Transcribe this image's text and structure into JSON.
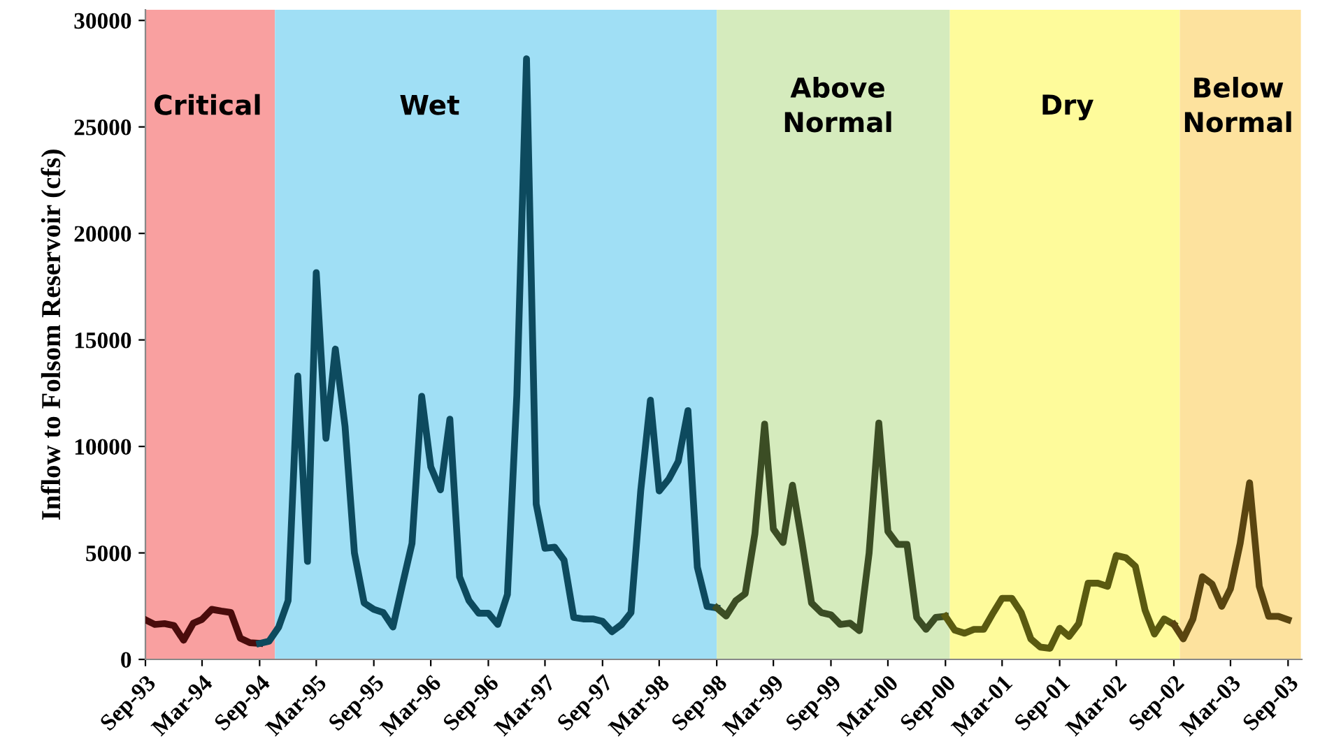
{
  "chart_data": {
    "type": "line",
    "ylabel": "Inflow to Folsom Reservoir (cfs)",
    "ylim": [
      0,
      30500
    ],
    "yticks": [
      0,
      5000,
      10000,
      15000,
      20000,
      25000,
      30000
    ],
    "xlim": [
      "1993-09",
      "2003-10-15"
    ],
    "xticks": [
      {
        "value": "1993-09",
        "label": "Sep-93"
      },
      {
        "value": "1994-03",
        "label": "Mar-94"
      },
      {
        "value": "1994-09",
        "label": "Sep-94"
      },
      {
        "value": "1995-03",
        "label": "Mar-95"
      },
      {
        "value": "1995-09",
        "label": "Sep-95"
      },
      {
        "value": "1996-03",
        "label": "Mar-96"
      },
      {
        "value": "1996-09",
        "label": "Sep-96"
      },
      {
        "value": "1997-03",
        "label": "Mar-97"
      },
      {
        "value": "1997-09",
        "label": "Sep-97"
      },
      {
        "value": "1998-03",
        "label": "Mar-98"
      },
      {
        "value": "1998-09",
        "label": "Sep-98"
      },
      {
        "value": "1999-03",
        "label": "Mar-99"
      },
      {
        "value": "1999-09",
        "label": "Sep-99"
      },
      {
        "value": "2000-03",
        "label": "Mar-00"
      },
      {
        "value": "2000-09",
        "label": "Sep-00"
      },
      {
        "value": "2001-03",
        "label": "Mar-01"
      },
      {
        "value": "2001-09",
        "label": "Sep-01"
      },
      {
        "value": "2002-03",
        "label": "Mar-02"
      },
      {
        "value": "2002-09",
        "label": "Sep-02"
      },
      {
        "value": "2003-03",
        "label": "Mar-03"
      },
      {
        "value": "2003-09",
        "label": "Sep-03"
      }
    ],
    "grid": false,
    "legend": false,
    "marker": "none",
    "line_style": "solid",
    "bands": [
      {
        "axis": "x",
        "from": "1993-09",
        "to": "1994-10-20",
        "label": "Critical",
        "color": "#f9a0a0"
      },
      {
        "axis": "x",
        "from": "1994-10-20",
        "to": "1998-09",
        "label": "Wet",
        "color": "#a0dff5"
      },
      {
        "axis": "x",
        "from": "1998-09",
        "to": "2000-09-15",
        "label": "Above\nNormal",
        "color": "#d5ebbd"
      },
      {
        "axis": "x",
        "from": "2000-09-15",
        "to": "2002-09-20",
        "label": "Dry",
        "color": "#fefb9b"
      },
      {
        "axis": "x",
        "from": "2002-09-20",
        "to": "2003-10-12",
        "label": "Below\nNormal",
        "color": "#fde29e"
      }
    ],
    "series": [
      {
        "color": "#4a0c0c",
        "x": [
          "1993-09",
          "1993-10",
          "1993-11",
          "1993-12",
          "1994-01",
          "1994-02",
          "1994-03",
          "1994-04",
          "1994-05",
          "1994-06",
          "1994-07",
          "1994-08",
          "1994-09"
        ],
        "values": [
          1860,
          1640,
          1680,
          1590,
          900,
          1700,
          1880,
          2350,
          2270,
          2200,
          1000,
          780,
          750
        ]
      },
      {
        "color": "#0d4a5e",
        "x": [
          "1994-09",
          "1994-10",
          "1994-11",
          "1994-12",
          "1995-01",
          "1995-02",
          "1995-03",
          "1995-04",
          "1995-05",
          "1995-06",
          "1995-07",
          "1995-08",
          "1995-09",
          "1995-10",
          "1995-11",
          "1995-12",
          "1996-01",
          "1996-02",
          "1996-03",
          "1996-04",
          "1996-05",
          "1996-06",
          "1996-07",
          "1996-08",
          "1996-09",
          "1996-10",
          "1996-11",
          "1996-12",
          "1997-01",
          "1997-02",
          "1997-03",
          "1997-04",
          "1997-05",
          "1997-06",
          "1997-07",
          "1997-08",
          "1997-09",
          "1997-10",
          "1997-11",
          "1997-12",
          "1998-01",
          "1998-02",
          "1998-03",
          "1998-04",
          "1998-05",
          "1998-06",
          "1998-07",
          "1998-08",
          "1998-09"
        ],
        "values": [
          750,
          850,
          1520,
          2760,
          13300,
          4600,
          18160,
          10380,
          14570,
          10940,
          5000,
          2650,
          2350,
          2200,
          1520,
          3480,
          5450,
          12350,
          9040,
          7960,
          11280,
          3880,
          2760,
          2170,
          2170,
          1640,
          3050,
          12400,
          28200,
          7290,
          5220,
          5270,
          4660,
          1970,
          1900,
          1900,
          1790,
          1300,
          1640,
          2200,
          7910,
          12170,
          7910,
          8470,
          9300,
          11680,
          4330,
          2490,
          2420
        ]
      },
      {
        "color": "#3b4d24",
        "x": [
          "1998-09",
          "1998-10",
          "1998-11",
          "1998-12",
          "1999-01",
          "1999-02",
          "1999-03",
          "1999-04",
          "1999-05",
          "1999-06",
          "1999-07",
          "1999-08",
          "1999-09",
          "1999-10",
          "1999-11",
          "1999-12",
          "2000-01",
          "2000-02",
          "2000-03",
          "2000-04",
          "2000-05",
          "2000-06",
          "2000-07",
          "2000-08",
          "2000-09"
        ],
        "values": [
          2420,
          2040,
          2760,
          3090,
          5900,
          11050,
          6120,
          5490,
          8180,
          5450,
          2650,
          2200,
          2090,
          1640,
          1700,
          1350,
          5000,
          11100,
          6010,
          5400,
          5400,
          1970,
          1410,
          1970,
          2020
        ]
      },
      {
        "color": "#5a5a10",
        "x": [
          "2000-09",
          "2000-10",
          "2000-11",
          "2000-12",
          "2001-01",
          "2001-02",
          "2001-03",
          "2001-04",
          "2001-05",
          "2001-06",
          "2001-07",
          "2001-08",
          "2001-09",
          "2001-10",
          "2001-11",
          "2001-12",
          "2002-01",
          "2002-02",
          "2002-03",
          "2002-04",
          "2002-05",
          "2002-06",
          "2002-07",
          "2002-08",
          "2002-09"
        ],
        "values": [
          2020,
          1370,
          1230,
          1410,
          1410,
          2200,
          2870,
          2870,
          2200,
          960,
          580,
          520,
          1460,
          1080,
          1680,
          3580,
          3580,
          3430,
          4880,
          4770,
          4370,
          2310,
          1190,
          1900,
          1640
        ]
      },
      {
        "color": "#5a4510",
        "x": [
          "2002-09",
          "2002-10",
          "2002-11",
          "2002-12",
          "2003-01",
          "2003-02",
          "2003-03",
          "2003-04",
          "2003-05",
          "2003-06",
          "2003-07",
          "2003-08",
          "2003-09"
        ],
        "values": [
          1640,
          960,
          1900,
          3880,
          3540,
          2490,
          3320,
          5450,
          8290,
          3430,
          2020,
          2020,
          1860
        ]
      }
    ]
  }
}
